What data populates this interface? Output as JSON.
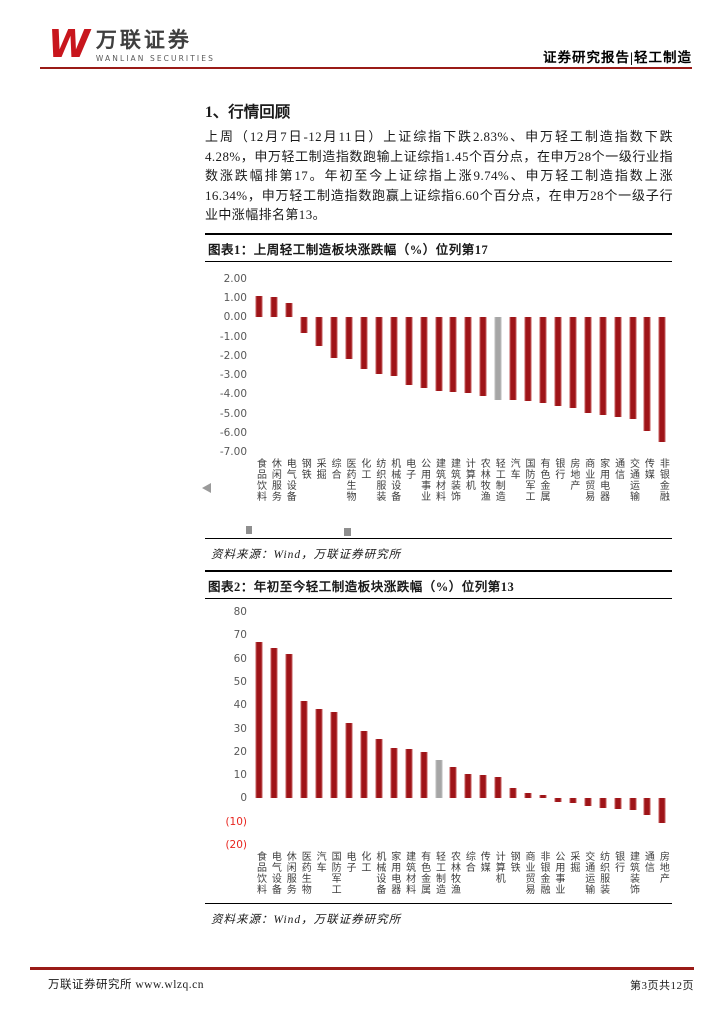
{
  "header": {
    "logo_mark": "W",
    "logo_cn": "万联证券",
    "logo_en": "WANLIAN SECURITIES",
    "report_type": "证券研究报告|轻工制造"
  },
  "section": {
    "title": "1、行情回顾",
    "paragraph": "上周（12月7日-12月11日）上证综指下跌2.83%、申万轻工制造指数下跌4.28%，申万轻工制造指数跑输上证综指1.45个百分点，在申万28个一级行业指数涨跌幅排第17。年初至今上证综指上涨9.74%、申万轻工制造指数上涨16.34%，申万轻工制造指数跑赢上证综指6.60个百分点，在申万28个一级子行业中涨幅排名第13。"
  },
  "chart_data": [
    {
      "type": "bar",
      "title": "图表1：上周轻工制造板块涨跌幅（%）位列第17",
      "source": "资料来源：Wind，万联证券研究所",
      "grid": false,
      "legend": false,
      "ylim": [
        -7,
        2
      ],
      "bar_color": "#9E1418",
      "highlight_color": "#A6A6A6",
      "highlight_category": "轻工制造",
      "yticks": [
        {
          "value": 2,
          "label": "2.00"
        },
        {
          "value": 1,
          "label": "1.00"
        },
        {
          "value": 0,
          "label": "0.00"
        },
        {
          "value": -1,
          "label": "-1.00"
        },
        {
          "value": -2,
          "label": "-2.00"
        },
        {
          "value": -3,
          "label": "-3.00"
        },
        {
          "value": -4,
          "label": "-4.00"
        },
        {
          "value": -5,
          "label": "-5.00"
        },
        {
          "value": -6,
          "label": "-6.00"
        },
        {
          "value": -7,
          "label": "-7.00"
        }
      ],
      "categories": [
        "食品饮料",
        "休闲服务",
        "电气设备",
        "钢铁",
        "采掘",
        "综合",
        "医药生物",
        "化工",
        "纺织服装",
        "机械设备",
        "电子",
        "公用事业",
        "建筑材料",
        "建筑装饰",
        "计算机",
        "农林牧渔",
        "轻工制造",
        "汽车",
        "国防军工",
        "有色金属",
        "银行",
        "房地产",
        "商业贸易",
        "家用电器",
        "通信",
        "交通运输",
        "传媒",
        "非银金融"
      ],
      "values": [
        1.1,
        1.05,
        0.75,
        -0.8,
        -1.5,
        -2.1,
        -2.15,
        -2.7,
        -2.95,
        -3.05,
        -3.5,
        -3.65,
        -3.85,
        -3.9,
        -3.95,
        -4.1,
        -4.28,
        -4.3,
        -4.35,
        -4.45,
        -4.6,
        -4.7,
        -4.95,
        -5.1,
        -5.2,
        -5.3,
        -5.9,
        -6.5
      ]
    },
    {
      "type": "bar",
      "title": "图表2：年初至今轻工制造板块涨跌幅（%）位列第13",
      "source": "资料来源：Wind，万联证券研究所",
      "grid": false,
      "legend": false,
      "ylim": [
        -20,
        80
      ],
      "bar_color": "#9E1418",
      "highlight_color": "#A6A6A6",
      "highlight_category": "轻工制造",
      "negative_tick_color": "#E8251F",
      "yticks": [
        {
          "value": 80,
          "label": "80"
        },
        {
          "value": 70,
          "label": "70"
        },
        {
          "value": 60,
          "label": "60"
        },
        {
          "value": 50,
          "label": "50"
        },
        {
          "value": 40,
          "label": "40"
        },
        {
          "value": 30,
          "label": "30"
        },
        {
          "value": 20,
          "label": "20"
        },
        {
          "value": 10,
          "label": "10"
        },
        {
          "value": 0,
          "label": "0"
        },
        {
          "value": -10,
          "label": "(10)",
          "negative": true
        },
        {
          "value": -20,
          "label": "(20)",
          "negative": true
        }
      ],
      "categories": [
        "食品饮料",
        "电气设备",
        "休闲服务",
        "医药生物",
        "汽车",
        "国防军工",
        "电子",
        "化工",
        "机械设备",
        "家用电器",
        "建筑材料",
        "有色金属",
        "轻工制造",
        "农林牧渔",
        "综合",
        "传媒",
        "计算机",
        "钢铁",
        "商业贸易",
        "非银金融",
        "公用事业",
        "采掘",
        "交通运输",
        "纺织服装",
        "银行",
        "建筑装饰",
        "通信",
        "房地产"
      ],
      "values": [
        67,
        64.5,
        62,
        42,
        38.5,
        37,
        32.5,
        29,
        25.5,
        21.5,
        21,
        20,
        16.34,
        13.5,
        10.5,
        10,
        9,
        4.3,
        2.4,
        1.6,
        -1.5,
        -2,
        -3.4,
        -4.3,
        -4.7,
        -5,
        -7,
        -10.5
      ]
    }
  ],
  "footer": {
    "left": "万联证券研究所 www.wlzq.cn",
    "right": "第3页共12页"
  },
  "colors": {
    "accent_red": "#9A1B17",
    "logo_red": "#C8161D",
    "bar_red": "#9E1418",
    "bar_highlight": "#A6A6A6",
    "tick_neg": "#E8251F"
  }
}
